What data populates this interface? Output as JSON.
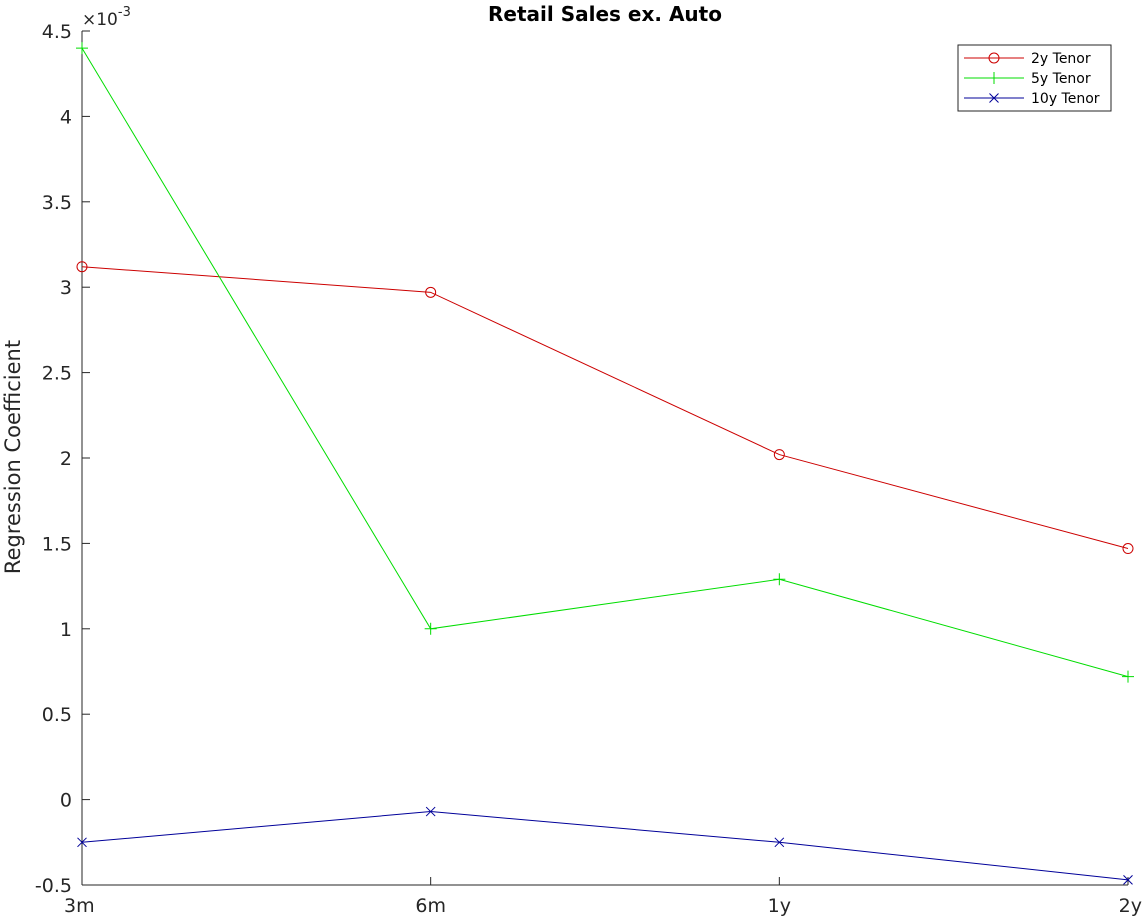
{
  "chart_data": {
    "type": "line",
    "title": "Retail Sales ex. Auto",
    "xlabel": "",
    "ylabel": "Regression Coefficient",
    "y_exponent_label": "×10",
    "y_exponent_power": "-3",
    "categories": [
      "3m",
      "6m",
      "1y",
      "2y"
    ],
    "ylim": [
      -0.5,
      4.5
    ],
    "yticks": [
      -0.5,
      0,
      0.5,
      1,
      1.5,
      2,
      2.5,
      3,
      3.5,
      4,
      4.5
    ],
    "ytick_labels": [
      "-0.5",
      "0",
      "0.5",
      "1",
      "1.5",
      "2",
      "2.5",
      "3",
      "3.5",
      "4",
      "4.5"
    ],
    "grid": false,
    "legend_position": "top-right",
    "series": [
      {
        "name": "2y Tenor",
        "values": [
          3.12,
          2.97,
          2.02,
          1.47
        ],
        "color": "#cc0000",
        "marker": "circle"
      },
      {
        "name": "5y Tenor",
        "values": [
          4.4,
          1.0,
          1.29,
          0.72
        ],
        "color": "#00dd00",
        "marker": "plus"
      },
      {
        "name": "10y Tenor",
        "values": [
          -0.25,
          -0.07,
          -0.25,
          -0.47
        ],
        "color": "#000099",
        "marker": "x"
      }
    ]
  }
}
